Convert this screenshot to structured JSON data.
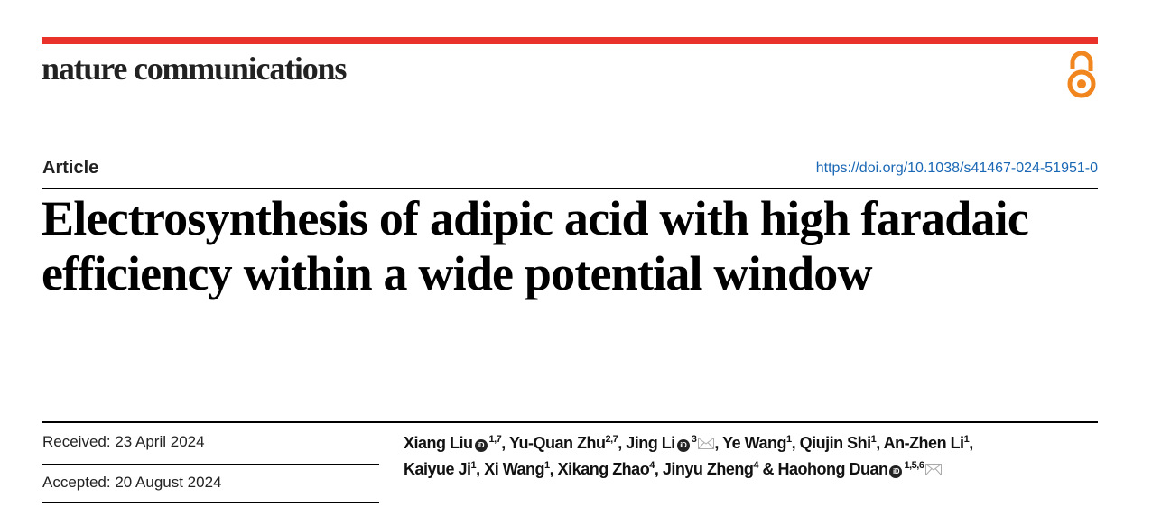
{
  "header": {
    "journal": "nature communications",
    "oa_icon": "open-access-icon",
    "accent": "#e8322a",
    "oa_color": "#f0861d"
  },
  "article": {
    "type": "Article",
    "doi": "https://doi.org/10.1038/s41467-024-51951-0",
    "title": "Electrosynthesis of adipic acid with high faradaic efficiency within a wide potential window"
  },
  "dates": {
    "received": "Received: 23 April 2024",
    "accepted": "Accepted: 20 August 2024"
  },
  "authors": [
    {
      "name": "Xiang Liu",
      "orcid": true,
      "aff": "1,7",
      "mail": false,
      "sep": ", "
    },
    {
      "name": "Yu-Quan Zhu",
      "orcid": false,
      "aff": "2,7",
      "mail": false,
      "sep": ", "
    },
    {
      "name": "Jing Li",
      "orcid": true,
      "aff": "3",
      "mail": true,
      "sep": ", "
    },
    {
      "name": "Ye Wang",
      "orcid": false,
      "aff": "1",
      "mail": false,
      "sep": ", "
    },
    {
      "name": "Qiujin Shi",
      "orcid": false,
      "aff": "1",
      "mail": false,
      "sep": ", "
    },
    {
      "name": "An-Zhen Li",
      "orcid": false,
      "aff": "1",
      "mail": false,
      "sep": ", "
    },
    {
      "name": "Kaiyue Ji",
      "orcid": false,
      "aff": "1",
      "mail": false,
      "sep": ", "
    },
    {
      "name": "Xi Wang",
      "orcid": false,
      "aff": "1",
      "mail": false,
      "sep": ", "
    },
    {
      "name": "Xikang Zhao",
      "orcid": false,
      "aff": "4",
      "mail": false,
      "sep": ", "
    },
    {
      "name": "Jinyu Zheng",
      "orcid": false,
      "aff": "4",
      "mail": false,
      "sep": " & "
    },
    {
      "name": "Haohong Duan",
      "orcid": true,
      "aff": "1,5,6",
      "mail": true,
      "sep": ""
    }
  ]
}
